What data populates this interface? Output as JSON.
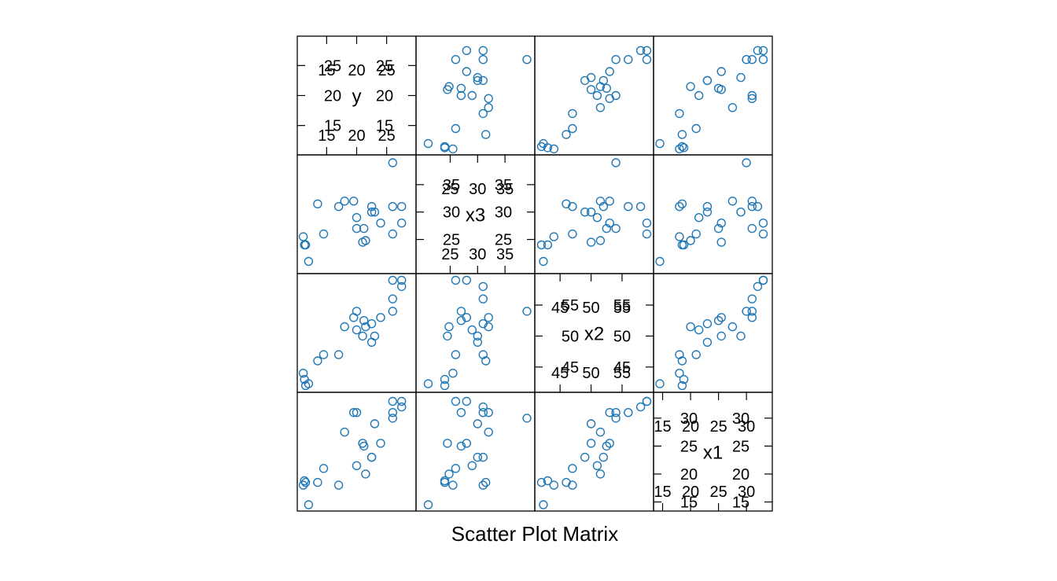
{
  "chart_data": {
    "type": "scatter",
    "layout": "scatter-plot-matrix",
    "xlabel": "Scatter Plot Matrix",
    "point_color": "#1f77b4",
    "variables": [
      "y",
      "x3",
      "x2",
      "x1"
    ],
    "diagonal_ticks": {
      "y": {
        "lim": [
          10.5,
          29.5
        ],
        "ticks": [
          15,
          20,
          25
        ]
      },
      "x3": {
        "lim": [
          19.2,
          40.0
        ],
        "ticks": [
          25,
          30,
          35
        ]
      },
      "x2": {
        "lim": [
          41.3,
          59.7
        ],
        "ticks": [
          45,
          50,
          55
        ]
      },
      "x1": {
        "lim": [
          13.8,
          34.2
        ],
        "ticks": [
          15,
          20,
          25,
          30
        ]
      }
    },
    "observations": [
      {
        "y": 12.0,
        "x1": 14.5,
        "x2": 42.3,
        "x3": 21.0
      },
      {
        "y": 11.5,
        "x1": 18.5,
        "x2": 42.0,
        "x3": 24.0
      },
      {
        "y": 11.3,
        "x1": 18.8,
        "x2": 43.0,
        "x3": 24.0
      },
      {
        "y": 11.1,
        "x1": 18.0,
        "x2": 44.0,
        "x3": 25.5
      },
      {
        "y": 13.5,
        "x1": 18.5,
        "x2": 46.0,
        "x3": 31.5
      },
      {
        "y": 17.0,
        "x1": 18.0,
        "x2": 47.0,
        "x3": 31.0
      },
      {
        "y": 14.5,
        "x1": 21.0,
        "x2": 47.0,
        "x3": 26.0
      },
      {
        "y": 20.0,
        "x1": 21.5,
        "x2": 51.0,
        "x3": 29.0
      },
      {
        "y": 21.5,
        "x1": 20.0,
        "x2": 51.5,
        "x3": 24.8
      },
      {
        "y": 22.5,
        "x1": 23.0,
        "x2": 49.0,
        "x3": 30.0
      },
      {
        "y": 21.2,
        "x1": 25.0,
        "x2": 52.5,
        "x3": 27.0
      },
      {
        "y": 24.0,
        "x1": 25.5,
        "x2": 53.0,
        "x3": 28.0
      },
      {
        "y": 22.5,
        "x1": 23.0,
        "x2": 52.0,
        "x3": 31.0
      },
      {
        "y": 21.0,
        "x1": 25.5,
        "x2": 50.0,
        "x3": 24.5
      },
      {
        "y": 18.0,
        "x1": 27.5,
        "x2": 51.5,
        "x3": 32.0
      },
      {
        "y": 26.0,
        "x1": 30.0,
        "x2": 54.0,
        "x3": 39.0
      },
      {
        "y": 23.0,
        "x1": 29.0,
        "x2": 50.0,
        "x3": 30.0
      },
      {
        "y": 20.0,
        "x1": 31.0,
        "x2": 54.0,
        "x3": 27.0
      },
      {
        "y": 26.0,
        "x1": 31.0,
        "x2": 56.0,
        "x3": 31.0
      },
      {
        "y": 27.5,
        "x1": 32.0,
        "x2": 58.0,
        "x3": 31.0
      },
      {
        "y": 27.5,
        "x1": 33.0,
        "x2": 59.0,
        "x3": 28.0
      },
      {
        "y": 26.0,
        "x1": 33.0,
        "x2": 59.0,
        "x3": 26.0
      },
      {
        "y": 19.5,
        "x1": 31.0,
        "x2": 53.0,
        "x3": 32.0
      }
    ]
  }
}
